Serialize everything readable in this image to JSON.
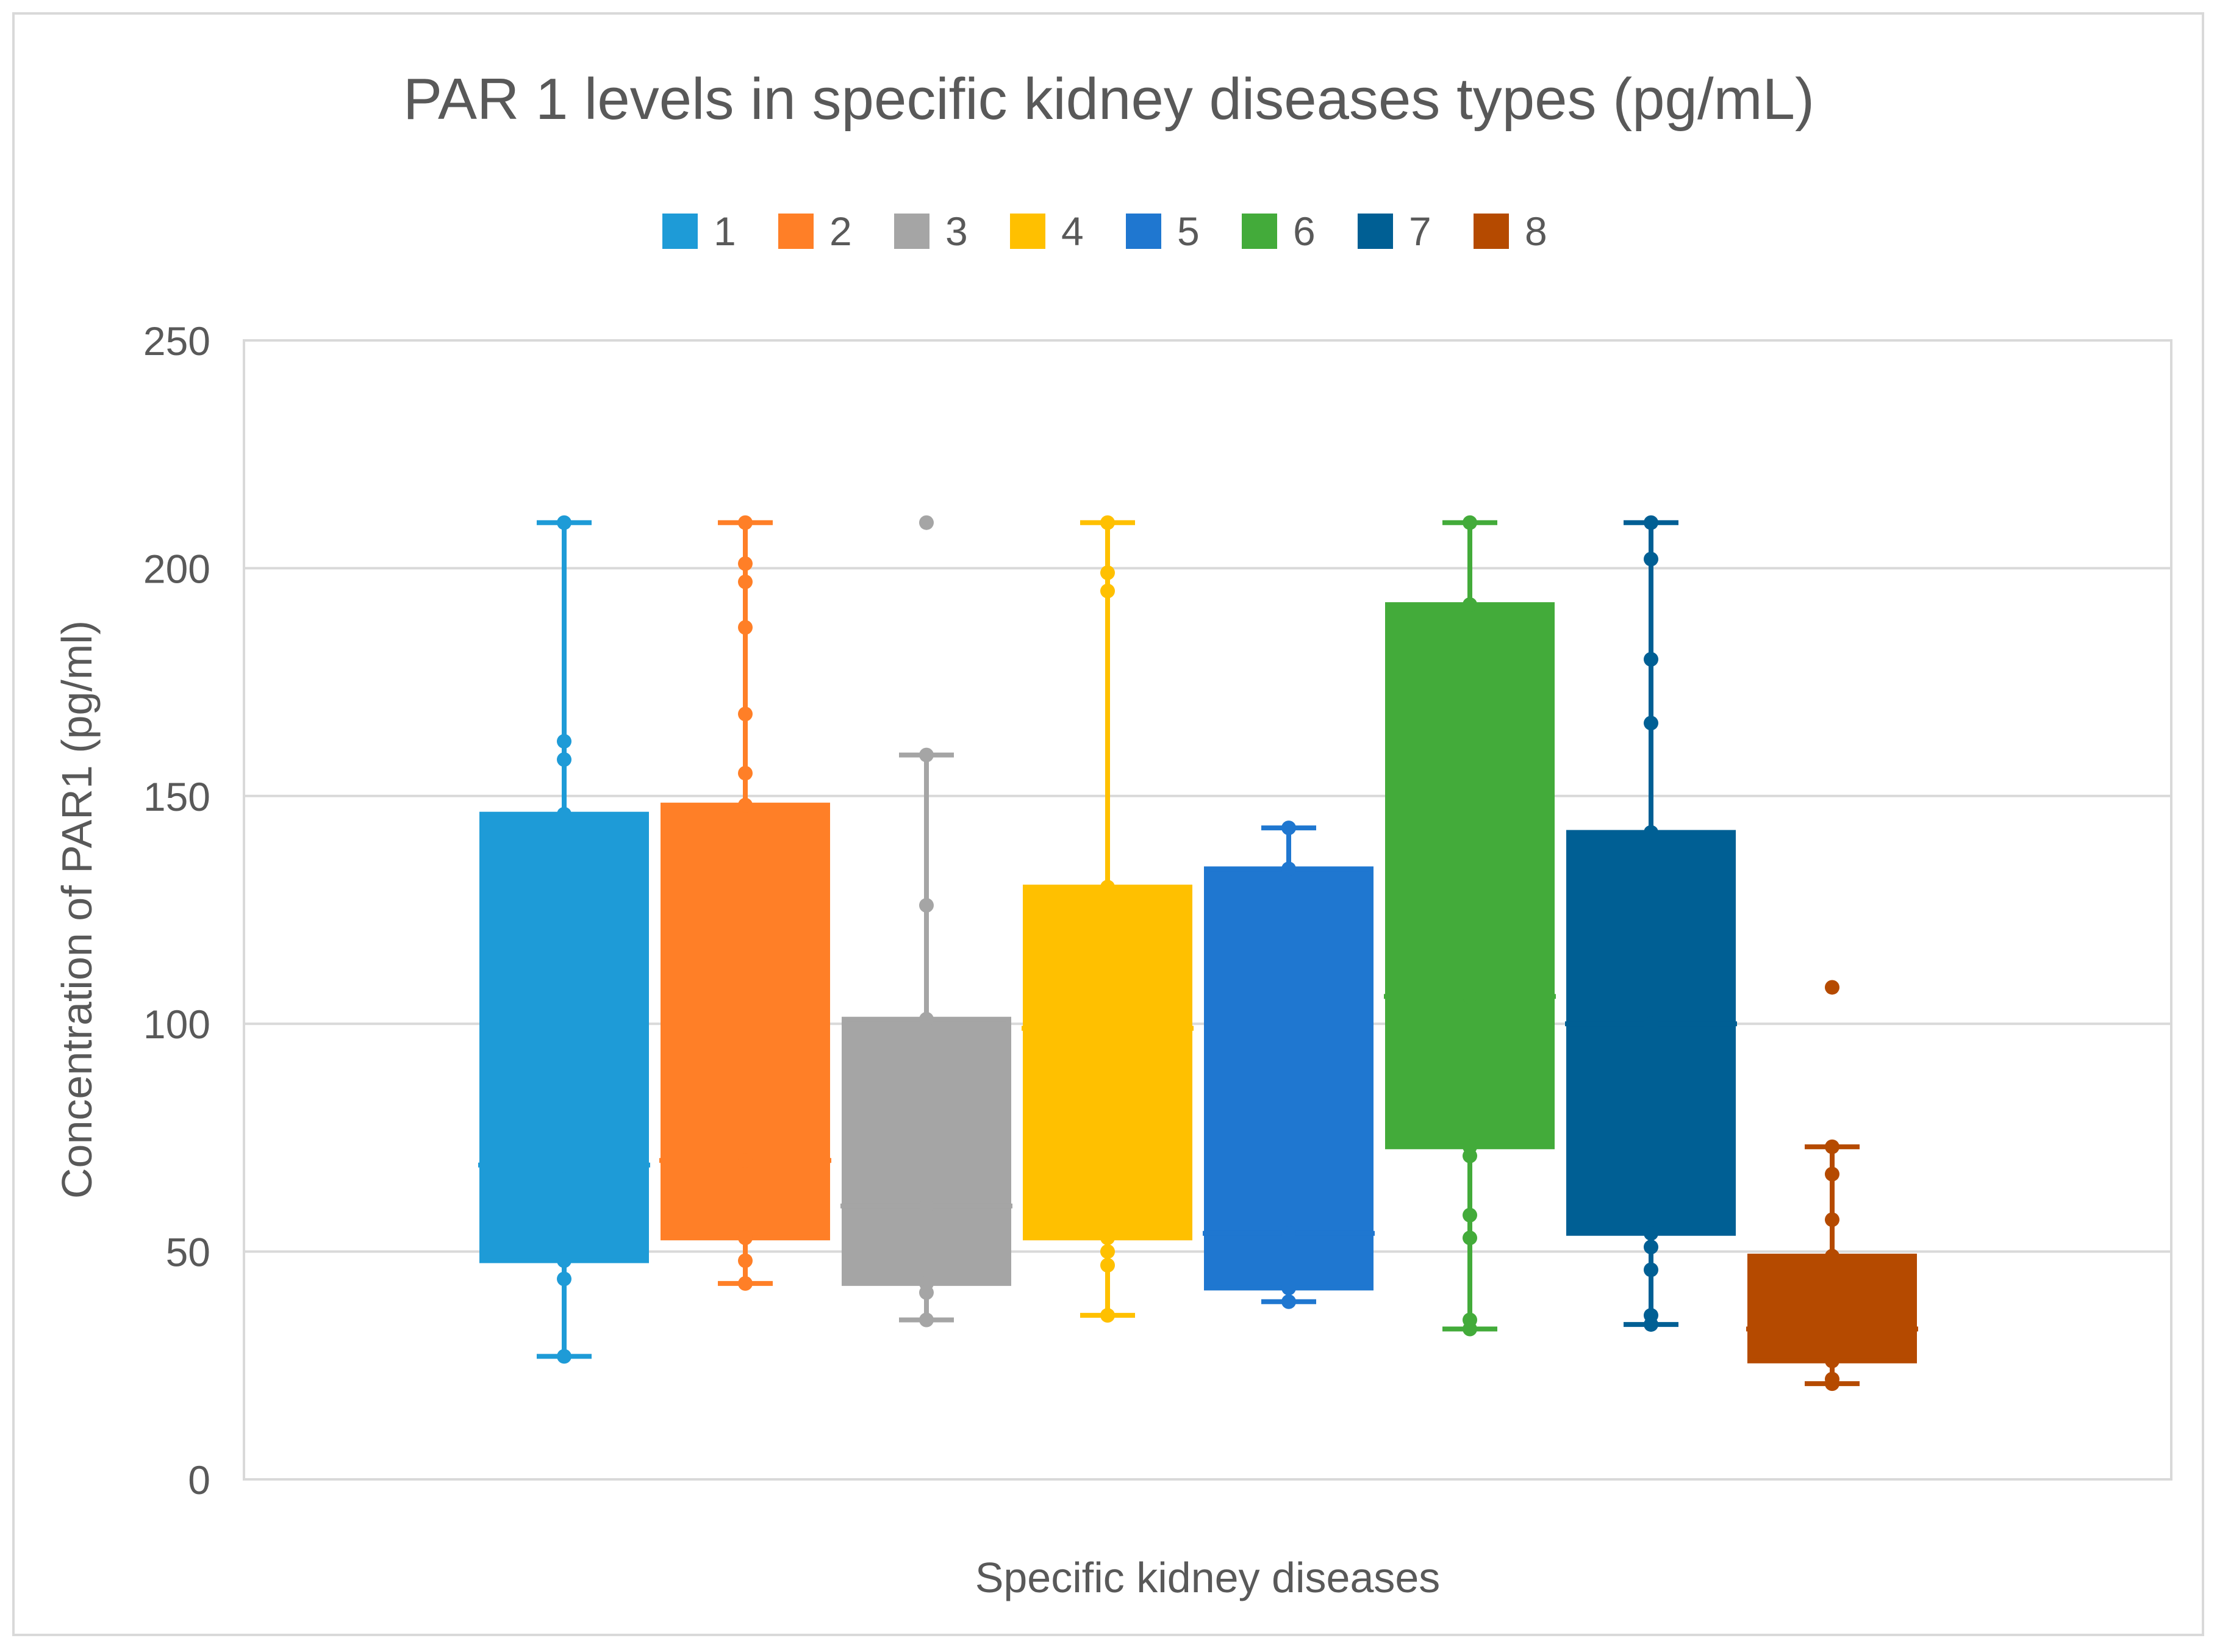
{
  "chart_data": {
    "type": "box",
    "title": "PAR 1 levels in specific kidney diseases types (pg/mL)",
    "xlabel": "Specific kidney diseases",
    "ylabel": "Concentration of PAR1 (pg/ml)",
    "ylim": [
      0,
      250
    ],
    "yticks": [
      0,
      50,
      100,
      150,
      200,
      250
    ],
    "grid": true,
    "legend_position": "top",
    "legend": [
      "1",
      "2",
      "3",
      "4",
      "5",
      "6",
      "7",
      "8"
    ],
    "series": [
      {
        "name": "1",
        "color": "#1E9BD7",
        "min": 27,
        "q1": 48,
        "median": 69,
        "q3": 146,
        "max": 210,
        "points": [
          210,
          162,
          158,
          146,
          69,
          48,
          44,
          27
        ],
        "outliers": []
      },
      {
        "name": "2",
        "color": "#FF7F27",
        "min": 43,
        "q1": 53,
        "median": 70,
        "q3": 148,
        "max": 210,
        "points": [
          210,
          201,
          197,
          187,
          168,
          155,
          148,
          70,
          53,
          48,
          43
        ],
        "outliers": []
      },
      {
        "name": "3",
        "color": "#A5A5A5",
        "min": 35,
        "q1": 43,
        "median": 60,
        "q3": 101,
        "max": 159,
        "points": [
          159,
          126,
          101,
          60,
          43,
          41,
          35
        ],
        "outliers": [
          210
        ]
      },
      {
        "name": "4",
        "color": "#FFC000",
        "min": 36,
        "q1": 53,
        "median": 99,
        "q3": 130,
        "max": 210,
        "points": [
          210,
          199,
          195,
          130,
          99,
          53,
          50,
          47,
          36
        ],
        "outliers": []
      },
      {
        "name": "5",
        "color": "#1F77D0",
        "min": 39,
        "q1": 42,
        "median": 54,
        "q3": 134,
        "max": 143,
        "points": [
          143,
          134,
          54,
          42,
          39
        ],
        "outliers": []
      },
      {
        "name": "6",
        "color": "#43AB3A",
        "min": 33,
        "q1": 73,
        "median": 106,
        "q3": 192,
        "max": 210,
        "points": [
          210,
          192,
          106,
          73,
          71,
          58,
          53,
          35,
          33
        ],
        "outliers": []
      },
      {
        "name": "7",
        "color": "#005F94",
        "min": 34,
        "q1": 54,
        "median": 100,
        "q3": 142,
        "max": 210,
        "points": [
          210,
          202,
          180,
          166,
          142,
          100,
          54,
          51,
          46,
          36,
          34
        ],
        "outliers": []
      },
      {
        "name": "8",
        "color": "#B54A00",
        "min": 21,
        "q1": 26,
        "median": 33,
        "q3": 49,
        "max": 73,
        "points": [
          73,
          67,
          57,
          49,
          33,
          26,
          22,
          21
        ],
        "outliers": [
          108
        ]
      }
    ]
  }
}
